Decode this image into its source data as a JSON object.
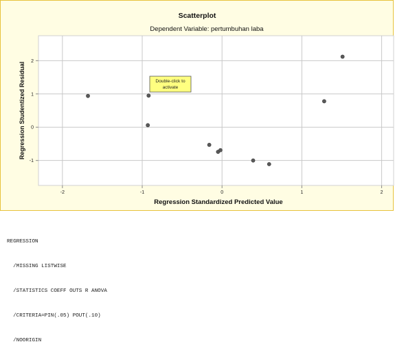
{
  "chart_data": {
    "type": "scatter",
    "title": "Scatterplot",
    "subtitle": "Dependent Variable: pertumbuhan laba",
    "xlabel": "Regression Standardized Predicted Value",
    "ylabel": "Regression Studentized Residual",
    "xlim": [
      -2.3,
      2.15
    ],
    "ylim": [
      -1.75,
      2.75
    ],
    "xticks": [
      "-2",
      "-1",
      "0",
      "1",
      "2"
    ],
    "yticks": [
      "2",
      "1",
      "0",
      "-1"
    ],
    "grid": true,
    "points": [
      {
        "x": -1.68,
        "y": 0.94
      },
      {
        "x": -0.92,
        "y": 0.95
      },
      {
        "x": -0.93,
        "y": 0.06
      },
      {
        "x": -0.16,
        "y": -0.53
      },
      {
        "x": -0.05,
        "y": -0.74
      },
      {
        "x": -0.02,
        "y": -0.69
      },
      {
        "x": 0.39,
        "y": -1.0
      },
      {
        "x": 0.59,
        "y": -1.11
      },
      {
        "x": 1.28,
        "y": 0.78
      },
      {
        "x": 1.51,
        "y": 2.12
      }
    ],
    "annotation": {
      "line1": "Double-click to",
      "line2": "activate"
    },
    "colors": {
      "plot_background": "#ffffff",
      "frame_background": "#fffde3",
      "frame_border": "#e7c23b",
      "point": "#5a5a5a",
      "grid": "#c8c8c8",
      "tooltip_background": "#ffff80"
    }
  },
  "syntax": {
    "lines": [
      "REGRESSION",
      "  /MISSING LISTWISE",
      "  /STATISTICS COEFF OUTS R ANOVA",
      "  /CRITERIA=PIN(.05) POUT(.10)",
      "  /NOORIGIN"
    ]
  }
}
